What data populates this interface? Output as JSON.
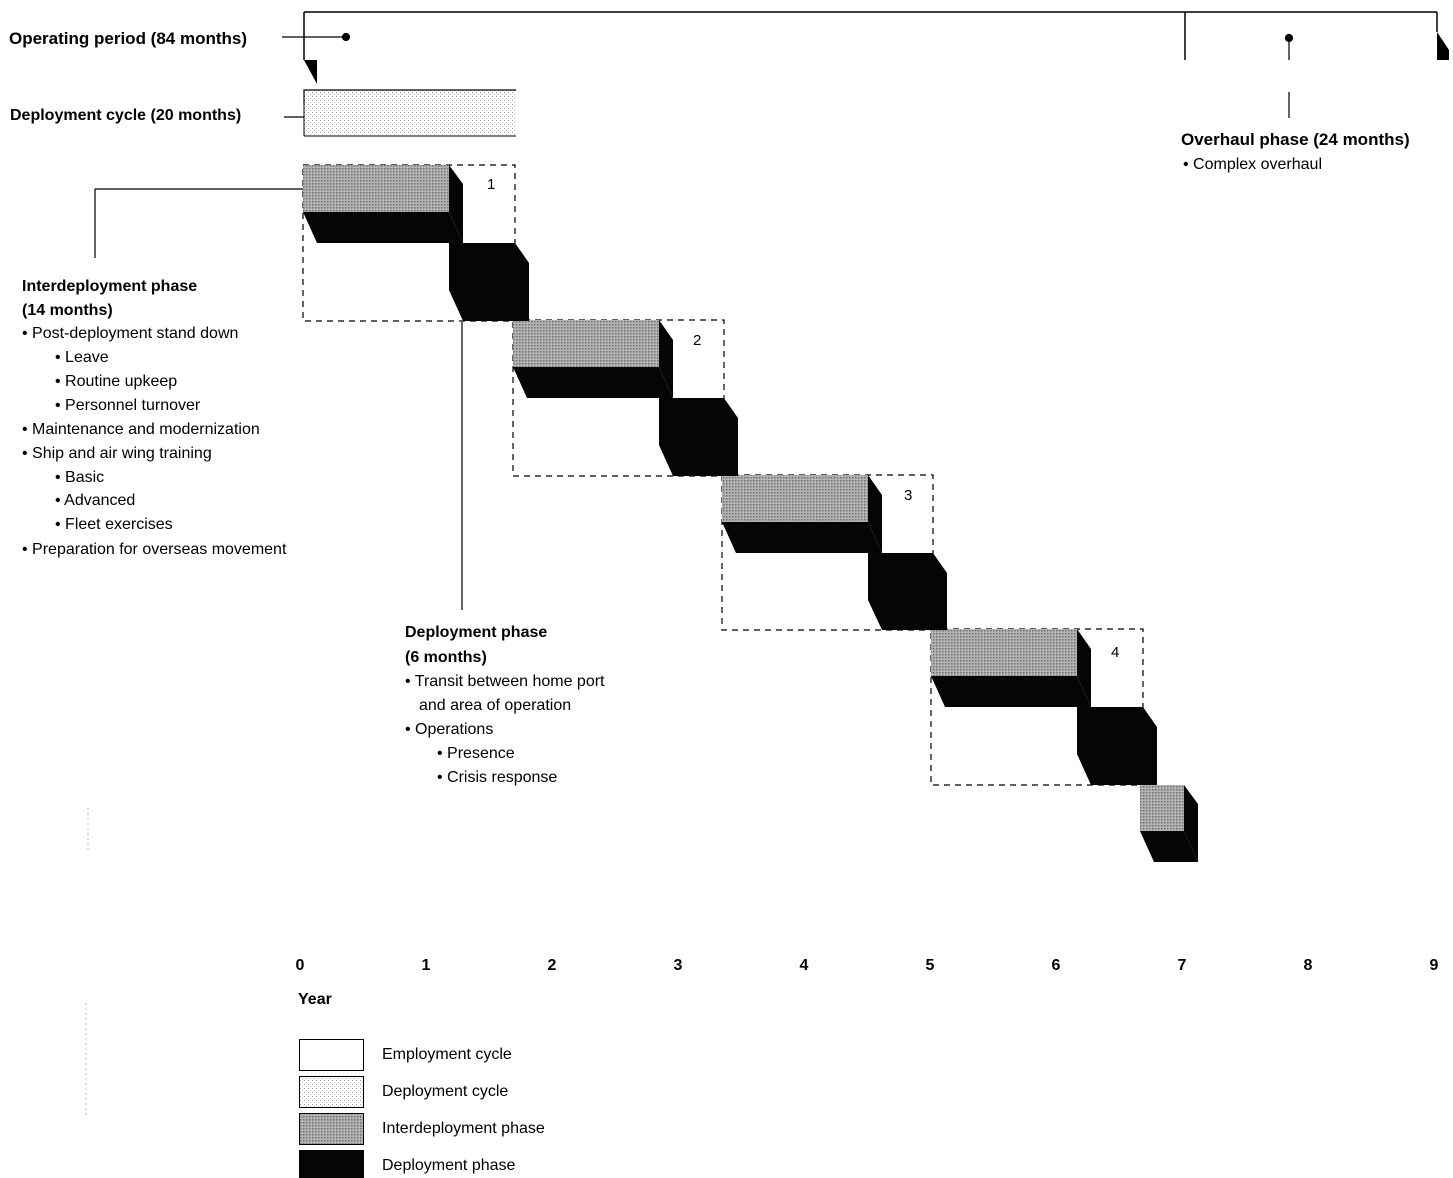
{
  "colors": {
    "deployment": "#050505",
    "interdeployment": "#9a9a9a",
    "ink": "#000000",
    "paper": "#ffffff"
  },
  "labels": {
    "operating_period": "Operating period (84 months)",
    "deployment_cycle": "Deployment cycle (20 months)",
    "overhaul_title": "Overhaul phase (24 months)",
    "overhaul_item": "• Complex overhaul"
  },
  "interdeployment": {
    "title_1": "Interdeployment phase",
    "title_2": "(14 months)",
    "items": [
      "• Post-deployment stand down",
      "• Leave",
      "• Routine upkeep",
      "• Personnel turnover",
      "• Maintenance and modernization",
      "• Ship and air wing training",
      "• Basic",
      "• Advanced",
      "• Fleet exercises",
      "• Preparation for overseas movement"
    ]
  },
  "deployment": {
    "title_1": "Deployment phase",
    "title_2": "(6 months)",
    "items": [
      "• Transit between home port",
      "and area of operation",
      "• Operations",
      "• Presence",
      "• Crisis response"
    ]
  },
  "cycles": [
    "1",
    "2",
    "3",
    "4"
  ],
  "axis": {
    "ticks": [
      "0",
      "1",
      "2",
      "3",
      "4",
      "5",
      "6",
      "7",
      "8",
      "9"
    ],
    "label": "Year"
  },
  "legend": {
    "employment_cycle": "Employment cycle",
    "deployment_cycle": "Deployment cycle",
    "interdeployment_phase": "Interdeployment phase",
    "deployment_phase": "Deployment phase"
  }
}
